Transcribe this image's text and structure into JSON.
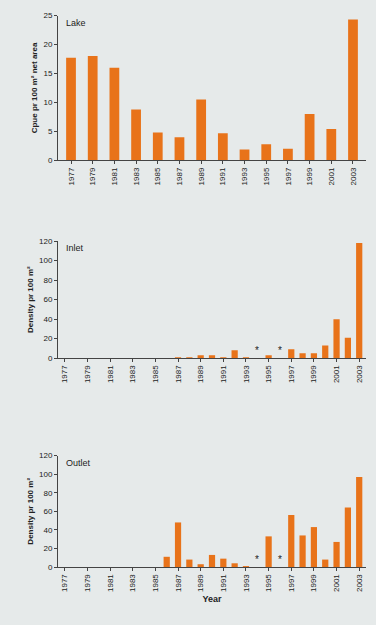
{
  "chart_data": [
    {
      "type": "bar",
      "title": "Lake",
      "categories": [
        "1977",
        "1979",
        "1981",
        "1983",
        "1985",
        "1987",
        "1989",
        "1991",
        "1993",
        "1995",
        "1997",
        "1999",
        "2001",
        "2003"
      ],
      "values": [
        17.7,
        18,
        16,
        8.8,
        4.8,
        4,
        10.5,
        4.7,
        1.9,
        2.8,
        2,
        8,
        5.4,
        24.3
      ],
      "color": "#e8731a",
      "y_label": "Cpue pr 100 m² net area",
      "ylim": [
        0,
        25
      ],
      "yticks": [
        0,
        5,
        10,
        15,
        20,
        25
      ],
      "grid": false
    },
    {
      "type": "bar",
      "title": "Inlet",
      "categories": [
        "1977",
        null,
        "1979",
        null,
        "1981",
        null,
        "1983",
        null,
        "1985",
        null,
        "1987",
        null,
        "1989",
        null,
        "1991",
        null,
        "1993",
        null,
        "1995",
        null,
        "1997",
        null,
        "1999",
        null,
        "2001",
        null,
        "2003"
      ],
      "values": [
        0,
        0,
        0,
        0,
        0,
        0,
        0,
        0,
        0,
        0,
        1,
        1,
        3,
        3,
        1,
        8,
        1,
        null,
        3,
        null,
        9,
        5,
        5,
        13,
        40,
        21,
        118
      ],
      "color": "#e8731a",
      "y_label": "Density pr 100 m²",
      "ylim": [
        0,
        120
      ],
      "yticks": [
        0,
        20,
        40,
        60,
        80,
        100,
        120
      ],
      "grid": false,
      "annotations": [
        {
          "text": "*",
          "index": 17
        },
        {
          "text": "*",
          "index": 19
        }
      ]
    },
    {
      "type": "bar",
      "title": "Outlet",
      "categories": [
        "1977",
        null,
        "1979",
        null,
        "1981",
        null,
        "1983",
        null,
        "1985",
        null,
        "1987",
        null,
        "1989",
        null,
        "1991",
        null,
        "1993",
        null,
        "1995",
        null,
        "1997",
        null,
        "1999",
        null,
        "2001",
        null,
        "2003"
      ],
      "values": [
        0,
        0,
        0,
        0,
        0,
        0,
        0,
        0,
        0,
        11,
        48,
        8,
        3,
        13,
        9,
        4,
        1,
        null,
        33,
        null,
        56,
        34,
        43,
        8,
        27,
        64,
        97
      ],
      "color": "#e8731a",
      "y_label": "Density pr 100 m²",
      "x_label": "Year",
      "ylim": [
        0,
        120
      ],
      "yticks": [
        0,
        20,
        40,
        60,
        80,
        100,
        120
      ],
      "grid": false,
      "annotations": [
        {
          "text": "*",
          "index": 17
        },
        {
          "text": "*",
          "index": 19
        }
      ]
    }
  ]
}
